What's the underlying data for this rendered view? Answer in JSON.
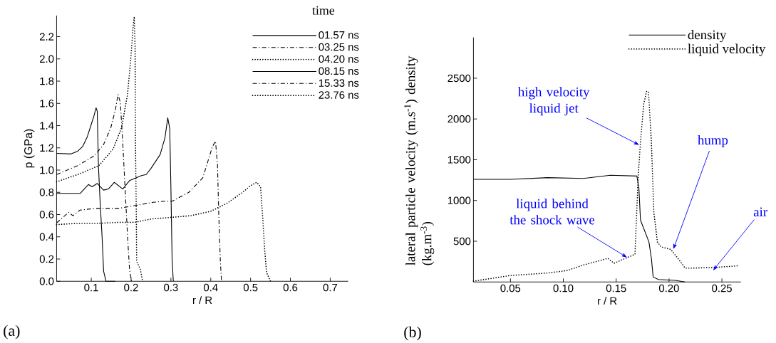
{
  "chart_data": [
    {
      "type": "line",
      "xlabel": "r / R",
      "ylabel": "p (GPa)",
      "legend_title": "time",
      "legend": "top right",
      "marker": "none",
      "xlim": [
        0.013,
        0.745
      ],
      "ylim": [
        0,
        2.39
      ],
      "xticks": [
        0.1,
        0.2,
        0.3,
        0.4,
        0.5,
        0.6,
        0.7
      ],
      "yticks": [
        {
          "value": 0,
          "label": "0.0"
        },
        0.2,
        0.4,
        0.6,
        0.8,
        {
          "value": 1,
          "label": "1.0"
        },
        1.2,
        1.4,
        1.6,
        1.8,
        {
          "value": 2,
          "label": "2.0"
        },
        2.2
      ],
      "annotations": [
        "(a)"
      ],
      "series": [
        {
          "name": "01.57 ns",
          "color": "#000000",
          "line_style": "solid",
          "x": [
            0.013,
            0.049,
            0.066,
            0.078,
            0.09,
            0.099,
            0.107,
            0.112,
            0.115,
            0.118,
            0.122,
            0.127,
            0.131,
            0.137,
            0.16
          ],
          "values": [
            1.15,
            1.145,
            1.17,
            1.21,
            1.3,
            1.4,
            1.49,
            1.56,
            1.53,
            1.04,
            0.73,
            0.41,
            0.09,
            0,
            0
          ]
        },
        {
          "name": "03.25 ns",
          "color": "#000000",
          "line_style": "dashdot",
          "x": [
            0.013,
            0.066,
            0.108,
            0.131,
            0.149,
            0.161,
            0.167,
            0.173,
            0.179,
            0.185,
            0.191,
            0.196,
            0.201
          ],
          "values": [
            0.96,
            1.04,
            1.13,
            1.23,
            1.38,
            1.55,
            1.68,
            1.61,
            1.25,
            0.83,
            0.41,
            0.11,
            0
          ]
        },
        {
          "name": "04.20 ns",
          "color": "#000000",
          "line_style": "dotted",
          "x": [
            0.013,
            0.066,
            0.119,
            0.155,
            0.176,
            0.191,
            0.199,
            0.205,
            0.208,
            0.21,
            0.211,
            0.213,
            0.214,
            0.223,
            0.229
          ],
          "values": [
            0.895,
            0.96,
            1.04,
            1.19,
            1.38,
            1.68,
            1.99,
            2.29,
            2.38,
            2.1,
            1.25,
            0.62,
            0.18,
            0.11,
            0
          ]
        },
        {
          "name": "08.15 ns",
          "color": "#000000",
          "line_style": "solid",
          "x": [
            0.013,
            0.072,
            0.093,
            0.102,
            0.115,
            0.131,
            0.143,
            0.158,
            0.179,
            0.196,
            0.226,
            0.238,
            0.25,
            0.273,
            0.285,
            0.292,
            0.297,
            0.3,
            0.303,
            0.306
          ],
          "values": [
            0.79,
            0.79,
            0.87,
            0.85,
            0.88,
            0.82,
            0.83,
            0.89,
            0.83,
            0.905,
            0.95,
            0.96,
            1.015,
            1.14,
            1.29,
            1.47,
            1.375,
            0.83,
            0.19,
            0
          ]
        },
        {
          "name": "15.33 ns",
          "color": "#000000",
          "line_style": "dashdot",
          "x": [
            0.013,
            0.043,
            0.054,
            0.072,
            0.108,
            0.167,
            0.208,
            0.255,
            0.284,
            0.303,
            0.345,
            0.38,
            0.404,
            0.412,
            0.417,
            0.42,
            0.424,
            0.427
          ],
          "values": [
            0.525,
            0.62,
            0.59,
            0.64,
            0.655,
            0.655,
            0.68,
            0.71,
            0.72,
            0.72,
            0.8,
            0.93,
            1.21,
            1.26,
            1.04,
            0.61,
            0.19,
            0
          ]
        },
        {
          "name": "23.76 ns",
          "color": "#000000",
          "line_style": "dotted",
          "x": [
            0.013,
            0.06,
            0.108,
            0.167,
            0.208,
            0.25,
            0.3,
            0.35,
            0.4,
            0.44,
            0.48,
            0.5,
            0.515,
            0.525,
            0.53,
            0.535,
            0.54,
            0.55
          ],
          "values": [
            0.51,
            0.52,
            0.52,
            0.53,
            0.53,
            0.56,
            0.575,
            0.59,
            0.63,
            0.7,
            0.8,
            0.86,
            0.89,
            0.85,
            0.6,
            0.3,
            0.08,
            0
          ]
        }
      ]
    },
    {
      "type": "line",
      "xlabel": "r / R",
      "ylabel": "lateral particle velocity (m.s$^{-1}$) density (kg.m$^{-3}$)",
      "legend": "top right",
      "marker": "none",
      "xlim": [
        0.015,
        0.268
      ],
      "ylim": [
        0,
        3000
      ],
      "xticks": [
        0.05,
        {
          "value": 0.1,
          "label": "0.10"
        },
        0.15,
        {
          "value": 0.2,
          "label": "0.20"
        },
        0.25
      ],
      "yticks": [
        500,
        1000,
        1500,
        2000,
        2500
      ],
      "annotations": [
        "(b)",
        {
          "text": "high velocity liquid jet",
          "x": 0.172,
          "y": 1680
        },
        {
          "text": "liquid behind the shock wave",
          "x": 0.1605,
          "y": 300
        },
        {
          "text": "hump",
          "x": 0.204,
          "y": 400
        },
        {
          "text": "air",
          "x": 0.2416,
          "y": 140
        }
      ],
      "series": [
        {
          "name": "density",
          "color": "#000000",
          "line_style": "solid",
          "x": [
            0.015,
            0.05,
            0.085,
            0.119,
            0.1445,
            0.1696,
            0.1715,
            0.173,
            0.181,
            0.1833,
            0.185,
            0.19,
            0.206,
            0.215
          ],
          "values": [
            1260,
            1260,
            1280,
            1270,
            1310,
            1300,
            1150,
            760,
            490,
            290,
            60,
            30,
            20,
            0
          ]
        },
        {
          "name": "liquid velocity",
          "color": "#000000",
          "line_style": "dotted",
          "x": [
            0.015,
            0.05,
            0.0852,
            0.1034,
            0.1194,
            0.1422,
            0.148,
            0.1605,
            0.1678,
            0.1708,
            0.173,
            0.176,
            0.1788,
            0.1806,
            0.1833,
            0.1856,
            0.189,
            0.1925,
            0.2016,
            0.2084,
            0.2153,
            0.2221,
            0.245,
            0.2667
          ],
          "values": [
            10,
            80,
            110,
            140,
            210,
            290,
            230,
            300,
            340,
            1290,
            1720,
            2180,
            2340,
            2330,
            1720,
            860,
            490,
            430,
            400,
            290,
            170,
            170,
            180,
            200
          ]
        }
      ]
    }
  ]
}
